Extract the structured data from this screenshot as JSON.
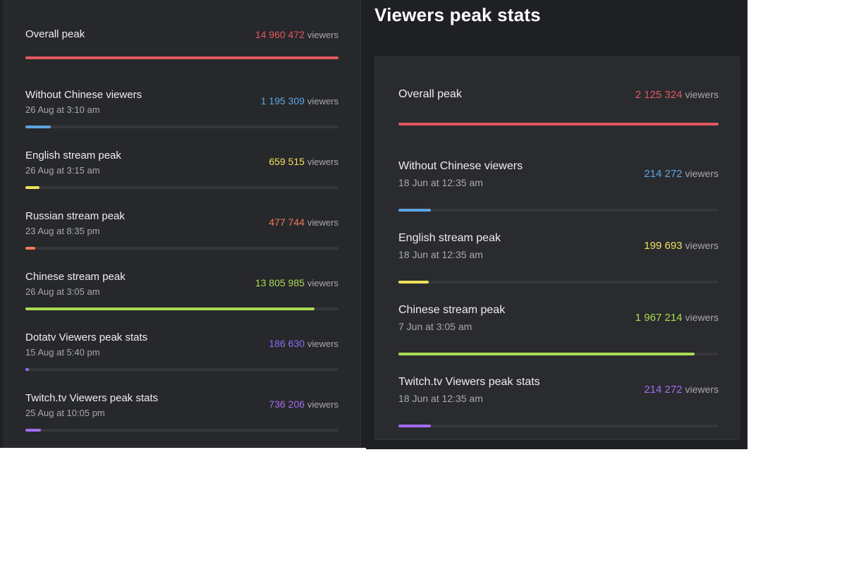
{
  "left_card": {
    "rows": [
      {
        "label": "Overall peak",
        "date": "",
        "value": "14 960 472",
        "unit": "viewers",
        "color": "#e0585f",
        "fill": 1.0
      },
      {
        "label": "Without Chinese viewers",
        "date": "26 Aug at 3:10 am",
        "value": "1 195 309",
        "unit": "viewers",
        "color": "#5ea4e0",
        "fill": 0.08
      },
      {
        "label": "English stream peak",
        "date": "26 Aug at 3:15 am",
        "value": "659 515",
        "unit": "viewers",
        "color": "#f1e05a",
        "fill": 0.044
      },
      {
        "label": "Russian stream peak",
        "date": "23 Aug at 8:35 pm",
        "value": "477 744",
        "unit": "viewers",
        "color": "#f07a5a",
        "fill": 0.032
      },
      {
        "label": "Chinese stream peak",
        "date": "26 Aug at 3:05 am",
        "value": "13 805 985",
        "unit": "viewers",
        "color": "#a8dc52",
        "fill": 0.923
      },
      {
        "label": "Dotatv Viewers peak stats",
        "date": "15 Aug at 5:40 pm",
        "value": "186 630",
        "unit": "viewers",
        "color": "#8b6cf0",
        "fill": 0.012
      },
      {
        "label": "Twitch.tv Viewers peak stats",
        "date": "25 Aug at 10:05 pm",
        "value": "736 206",
        "unit": "viewers",
        "color": "#a26cf0",
        "fill": 0.049
      }
    ]
  },
  "right_card": {
    "title": "Viewers peak stats",
    "rows": [
      {
        "label": "Overall peak",
        "date": "",
        "value": "2 125 324",
        "unit": "viewers",
        "color": "#e0585f",
        "fill": 1.0
      },
      {
        "label": "Without Chinese viewers",
        "date": "18 Jun at 12:35 am",
        "value": "214 272",
        "unit": "viewers",
        "color": "#5ea4e0",
        "fill": 0.101
      },
      {
        "label": "English stream peak",
        "date": "18 Jun at 12:35 am",
        "value": "199 693",
        "unit": "viewers",
        "color": "#f1e05a",
        "fill": 0.094
      },
      {
        "label": "Chinese stream peak",
        "date": "7 Jun at 3:05 am",
        "value": "1 967 214",
        "unit": "viewers",
        "color": "#a8dc52",
        "fill": 0.926
      },
      {
        "label": "Twitch.tv Viewers peak stats",
        "date": "18 Jun at 12:35 am",
        "value": "214 272",
        "unit": "viewers",
        "color": "#a26cf0",
        "fill": 0.101
      }
    ]
  }
}
